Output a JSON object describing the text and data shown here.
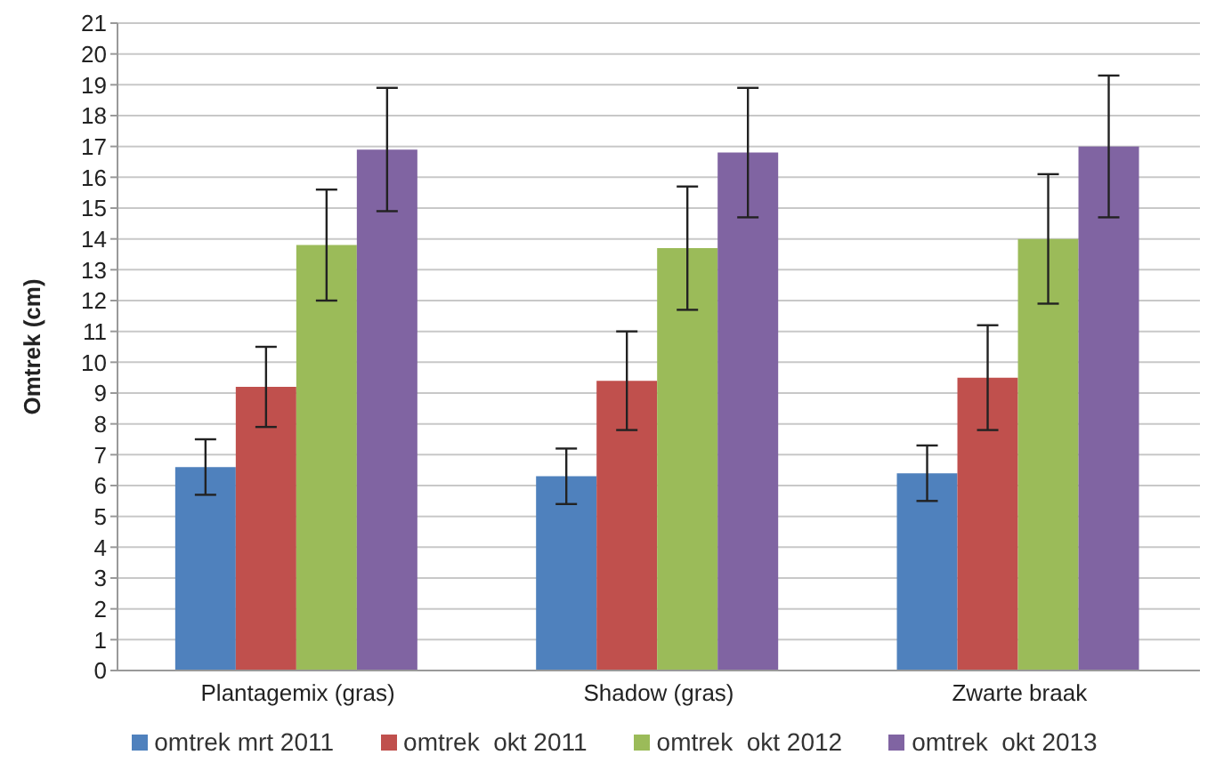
{
  "chart_data": {
    "type": "bar",
    "ylabel": "Omtrek (cm)",
    "categories": [
      "Plantagemix (gras)",
      "Shadow (gras)",
      "Zwarte braak"
    ],
    "series": [
      {
        "name": "omtrek mrt 2011",
        "color": "#4f81bd",
        "values": [
          6.6,
          6.3,
          6.4
        ],
        "errors": [
          0.9,
          0.9,
          0.9
        ]
      },
      {
        "name": "omtrek  okt 2011",
        "color": "#c0504d",
        "values": [
          9.2,
          9.4,
          9.5
        ],
        "errors": [
          1.3,
          1.6,
          1.7
        ]
      },
      {
        "name": "omtrek  okt 2012",
        "color": "#9bbb59",
        "values": [
          13.8,
          13.7,
          14.0
        ],
        "errors": [
          1.8,
          2.0,
          2.1
        ]
      },
      {
        "name": "omtrek  okt 2013",
        "color": "#8064a2",
        "values": [
          16.9,
          16.8,
          17.0
        ],
        "errors": [
          2.0,
          2.1,
          2.3
        ]
      }
    ],
    "ylim": [
      0,
      21
    ],
    "yticks": [
      0,
      1,
      2,
      3,
      4,
      5,
      6,
      7,
      8,
      9,
      10,
      11,
      12,
      13,
      14,
      15,
      16,
      17,
      18,
      19,
      20,
      21
    ],
    "grid": "y",
    "legend": "bottom"
  }
}
